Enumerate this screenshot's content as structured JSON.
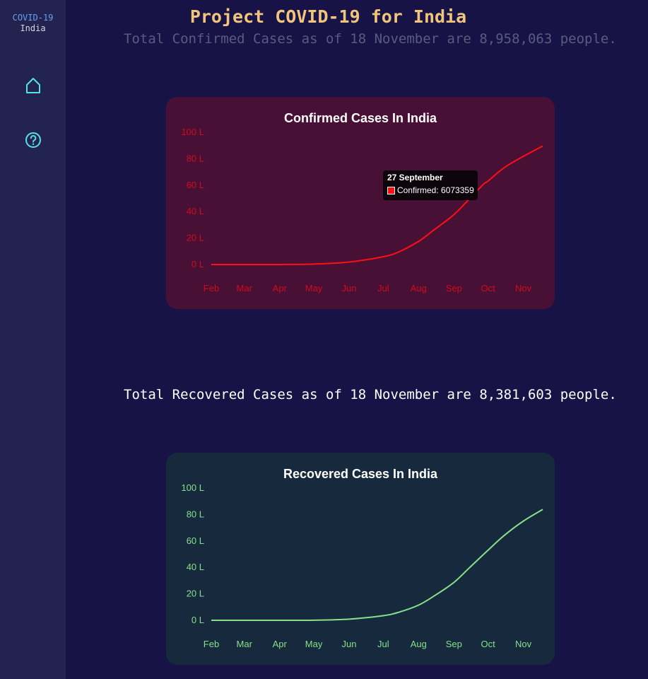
{
  "sidebar": {
    "brand_line1": "COVID-19",
    "brand_line2": "India",
    "icons": [
      "home-icon",
      "help-icon"
    ]
  },
  "header": {
    "title": "Project COVID-19 for India"
  },
  "summaries": {
    "confirmed": "Total Confirmed Cases as of 18 November are 8,958,063 people.",
    "recovered": "Total Recovered Cases as of 18 November are 8,381,603 people."
  },
  "colors": {
    "confirmed_line": "#ff0f14",
    "confirmed_ticks": "#d10a1e",
    "recovered_line": "#86e08a",
    "recovered_ticks": "#86e08a",
    "title": "#f2c57c"
  },
  "tooltip": {
    "title": "27 September",
    "label": "Confirmed: 6073359"
  },
  "chart_data": [
    {
      "id": "confirmed",
      "type": "line",
      "title": "Confirmed Cases In India",
      "xlabel": "",
      "ylabel": "",
      "x_ticks": [
        "Feb",
        "Mar",
        "Apr",
        "May",
        "Jun",
        "Jul",
        "Aug",
        "Sep",
        "Oct",
        "Nov"
      ],
      "y_ticks": [
        "0 L",
        "20 L",
        "40 L",
        "60 L",
        "80 L",
        "100 L"
      ],
      "ylim": [
        0,
        100
      ],
      "grid": false,
      "x": [
        "Feb 1",
        "Mar 1",
        "Apr 1",
        "May 1",
        "Jun 1",
        "Jul 1",
        "Jul 15",
        "Aug 1",
        "Aug 15",
        "Sep 1",
        "Sep 15",
        "Sep 27",
        "Oct 1",
        "Oct 15",
        "Nov 1",
        "Nov 18"
      ],
      "values": [
        0,
        0,
        0.02,
        0.35,
        1.9,
        5.9,
        9.7,
        17.5,
        26.5,
        37.7,
        50,
        60.7,
        63.1,
        73.1,
        81.8,
        89.6
      ]
    },
    {
      "id": "recovered",
      "type": "line",
      "title": "Recovered Cases In India",
      "xlabel": "",
      "ylabel": "",
      "x_ticks": [
        "Feb",
        "Mar",
        "Apr",
        "May",
        "Jun",
        "Jul",
        "Aug",
        "Sep",
        "Oct",
        "Nov"
      ],
      "y_ticks": [
        "0 L",
        "20 L",
        "40 L",
        "60 L",
        "80 L",
        "100 L"
      ],
      "ylim": [
        0,
        100
      ],
      "grid": false,
      "x": [
        "Feb 1",
        "Mar 1",
        "Apr 1",
        "May 1",
        "Jun 1",
        "Jul 1",
        "Jul 15",
        "Aug 1",
        "Aug 15",
        "Sep 1",
        "Sep 15",
        "Oct 1",
        "Oct 15",
        "Nov 1",
        "Nov 18"
      ],
      "values": [
        0,
        0,
        0,
        0.1,
        0.9,
        3.5,
        6.2,
        11.5,
        18.6,
        28.6,
        40,
        53,
        64,
        75,
        83.8
      ]
    }
  ]
}
